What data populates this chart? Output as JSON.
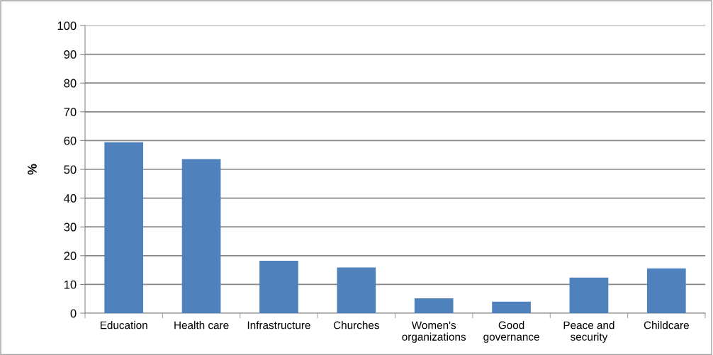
{
  "chart_data": {
    "type": "bar",
    "ylabel": "%",
    "categories": [
      "Education",
      "Health care",
      "Infrastructure",
      "Churches",
      "Women's\norganizations",
      "Good\ngovernance",
      "Peace and\nsecurity",
      "Childcare"
    ],
    "values": [
      59.4,
      53.6,
      18.2,
      15.9,
      5.2,
      4.0,
      12.4,
      15.6
    ],
    "color": "#4f81bd",
    "ylim": [
      0,
      100
    ],
    "yticks": [
      0,
      10,
      20,
      30,
      40,
      50,
      60,
      70,
      80,
      90,
      100
    ],
    "grid": "y",
    "legend": false
  }
}
